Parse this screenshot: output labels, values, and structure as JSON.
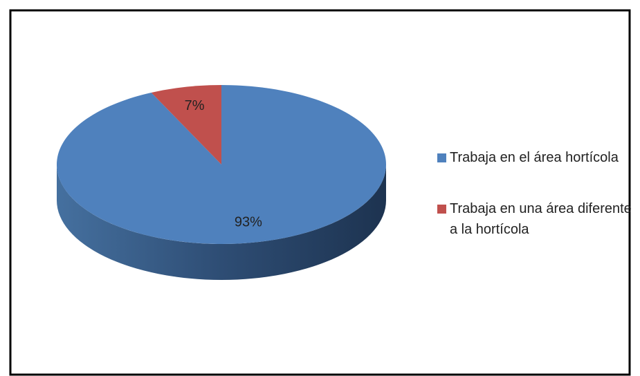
{
  "chart_data": {
    "type": "pie",
    "categories": [
      "Trabaja en el área hortícola",
      "Trabaja en una área diferente a la hortícola"
    ],
    "values": [
      93,
      7
    ],
    "value_labels": [
      "93%",
      "7%"
    ],
    "colors": [
      "#4f81bd",
      "#c0504d"
    ],
    "legend": "right"
  }
}
